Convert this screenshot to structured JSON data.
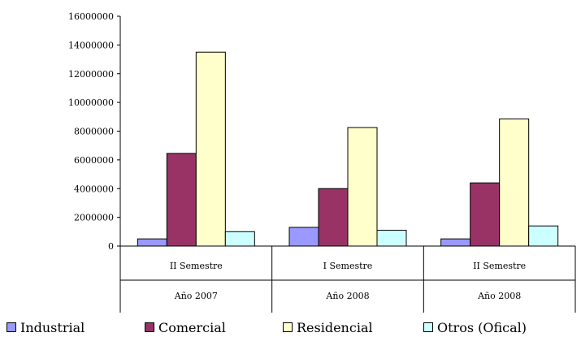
{
  "chart_data": {
    "type": "bar",
    "categories": [
      {
        "line1": "II Semestre",
        "line2": "Año 2007"
      },
      {
        "line1": "I Semestre",
        "line2": "Año 2008"
      },
      {
        "line1": "II Semestre",
        "line2": "Año 2008"
      }
    ],
    "series": [
      {
        "name": "Industrial",
        "color": "#9999ff",
        "values": [
          500000,
          1300000,
          500000
        ]
      },
      {
        "name": "Comercial",
        "color": "#993366",
        "values": [
          6450000,
          4000000,
          4400000
        ]
      },
      {
        "name": "Residencial",
        "color": "#ffffcc",
        "values": [
          13500000,
          8250000,
          8850000
        ]
      },
      {
        "name": "Otros (Ofical)",
        "color": "#ccffff",
        "values": [
          1000000,
          1100000,
          1400000
        ]
      }
    ],
    "yticks": [
      "0",
      "2000000",
      "4000000",
      "6000000",
      "8000000",
      "10000000",
      "12000000",
      "14000000",
      "16000000"
    ],
    "ylim": [
      0,
      16000000
    ],
    "grid": false,
    "legend_position": "bottom"
  }
}
